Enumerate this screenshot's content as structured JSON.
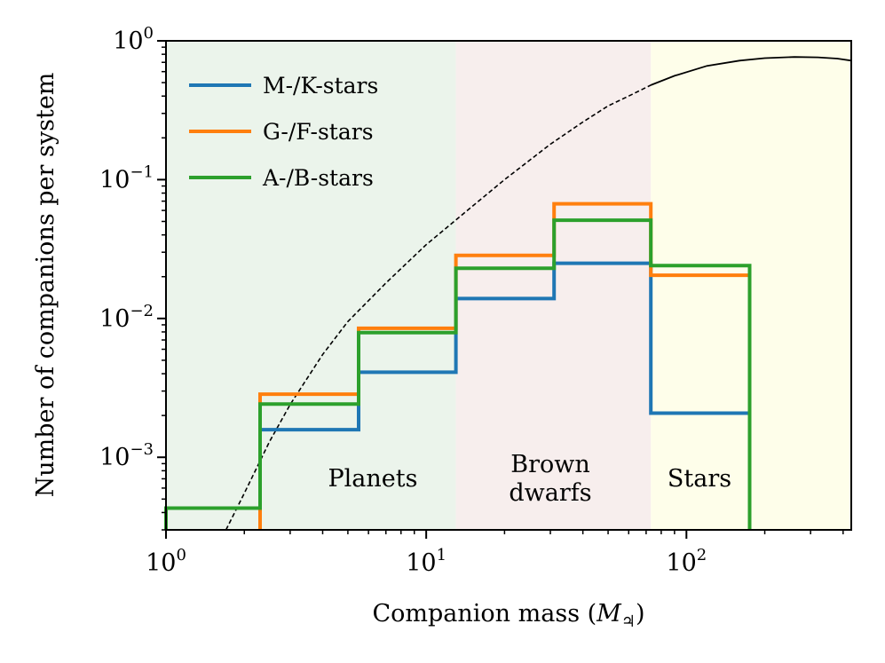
{
  "chart_data": {
    "type": "line",
    "xlabel": "Companion mass (",
    "xlabel_symbol": "M",
    "xlabel_subscript": "♃",
    "xlabel_close": ")",
    "ylabel": "Number of companions per system",
    "x_scale": "log",
    "y_scale": "log",
    "xlim": [
      1,
      430
    ],
    "ylim": [
      0.0003,
      1
    ],
    "x_ticks": [
      {
        "value": 1,
        "base": "10",
        "exp": "0"
      },
      {
        "value": 10,
        "base": "10",
        "exp": "1"
      },
      {
        "value": 100,
        "base": "10",
        "exp": "2"
      }
    ],
    "y_ticks": [
      {
        "value": 1,
        "base": "10",
        "exp": "0"
      },
      {
        "value": 0.1,
        "base": "10",
        "exp": "−1"
      },
      {
        "value": 0.01,
        "base": "10",
        "exp": "−2"
      },
      {
        "value": 0.001,
        "base": "10",
        "exp": "−3"
      }
    ],
    "regions": [
      {
        "label": [
          "Planets"
        ],
        "x": [
          1,
          13
        ],
        "color": "#ebf4eb"
      },
      {
        "label": [
          "Brown",
          "dwarfs"
        ],
        "x": [
          13,
          73
        ],
        "color": "#f7eeed"
      },
      {
        "label": [
          "Stars"
        ],
        "x": [
          73,
          430
        ],
        "color": "#fefeea"
      }
    ],
    "legend_position": "top-left",
    "series": [
      {
        "name": "M-/K-stars",
        "color": "#1f77b4",
        "bin_edges": [
          2.3,
          5.5,
          13,
          31,
          73,
          175
        ],
        "values": [
          0.00158,
          0.0041,
          0.0139,
          0.025,
          0.00208
        ]
      },
      {
        "name": "G-/F-stars",
        "color": "#ff7f0e",
        "bin_edges": [
          2.3,
          5.5,
          13,
          31,
          73,
          175
        ],
        "values": [
          0.00285,
          0.0085,
          0.0285,
          0.067,
          0.0205
        ]
      },
      {
        "name": "A-/B-stars",
        "color": "#2ca02c",
        "bin_edges": [
          1,
          2.3,
          5.5,
          13,
          31,
          73,
          175
        ],
        "values": [
          0.00043,
          0.00242,
          0.0079,
          0.023,
          0.051,
          0.024
        ]
      }
    ],
    "model_curve": {
      "color": "#000000",
      "dashed_until_x": 73,
      "points": [
        [
          1.7,
          0.00029
        ],
        [
          2,
          0.00055
        ],
        [
          2.5,
          0.0013
        ],
        [
          3,
          0.0024
        ],
        [
          4,
          0.0055
        ],
        [
          5,
          0.0095
        ],
        [
          7,
          0.018
        ],
        [
          10,
          0.034
        ],
        [
          15,
          0.064
        ],
        [
          20,
          0.1
        ],
        [
          30,
          0.18
        ],
        [
          40,
          0.26
        ],
        [
          50,
          0.34
        ],
        [
          60,
          0.4
        ],
        [
          73,
          0.48
        ],
        [
          90,
          0.56
        ],
        [
          120,
          0.66
        ],
        [
          160,
          0.72
        ],
        [
          200,
          0.75
        ],
        [
          260,
          0.765
        ],
        [
          320,
          0.76
        ],
        [
          380,
          0.745
        ],
        [
          430,
          0.72
        ]
      ]
    }
  }
}
